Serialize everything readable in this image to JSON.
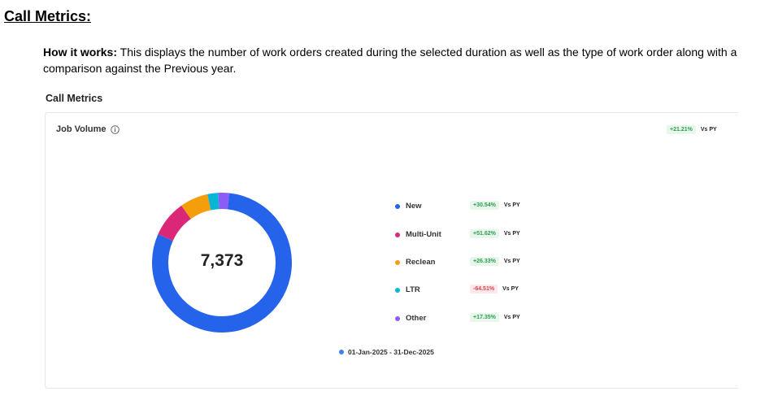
{
  "doc": {
    "heading": "Call Metrics:",
    "how_label": "How it works:",
    "how_text": " This displays the number of work orders created during the selected duration as well as the type of work order along with a comparison against the Previous year."
  },
  "section": {
    "title": "Call Metrics"
  },
  "card": {
    "title": "Job Volume",
    "info_icon": "info-circle-icon",
    "total": "7,373",
    "total_change": {
      "value": "+21.21%",
      "direction": "up",
      "suffix": "Vs PY"
    },
    "date_range": "01-Jan-2025 - 31-Dec-2025",
    "date_dot_color": "#3b82f6"
  },
  "colors": {
    "up_bg": "#e8f7ec",
    "up_text": "#2e9e4f",
    "down_bg": "#fde8ea",
    "down_text": "#d9414f"
  },
  "breakdown": [
    {
      "label": "New",
      "color": "#2563eb",
      "change": "+30.54%",
      "direction": "up",
      "suffix": "Vs PY",
      "share": 0.8
    },
    {
      "label": "Multi-Unit",
      "color": "#db2777",
      "change": "+51.62%",
      "direction": "up",
      "suffix": "Vs PY",
      "share": 0.085
    },
    {
      "label": "Reclean",
      "color": "#f59e0b",
      "change": "+26.33%",
      "direction": "up",
      "suffix": "Vs PY",
      "share": 0.065
    },
    {
      "label": "LTR",
      "color": "#06b6d4",
      "change": "-64.51%",
      "direction": "down",
      "suffix": "Vs PY",
      "share": 0.025
    },
    {
      "label": "Other",
      "color": "#8b5cf6",
      "change": "+17.35%",
      "direction": "up",
      "suffix": "Vs PY",
      "share": 0.025
    }
  ]
}
